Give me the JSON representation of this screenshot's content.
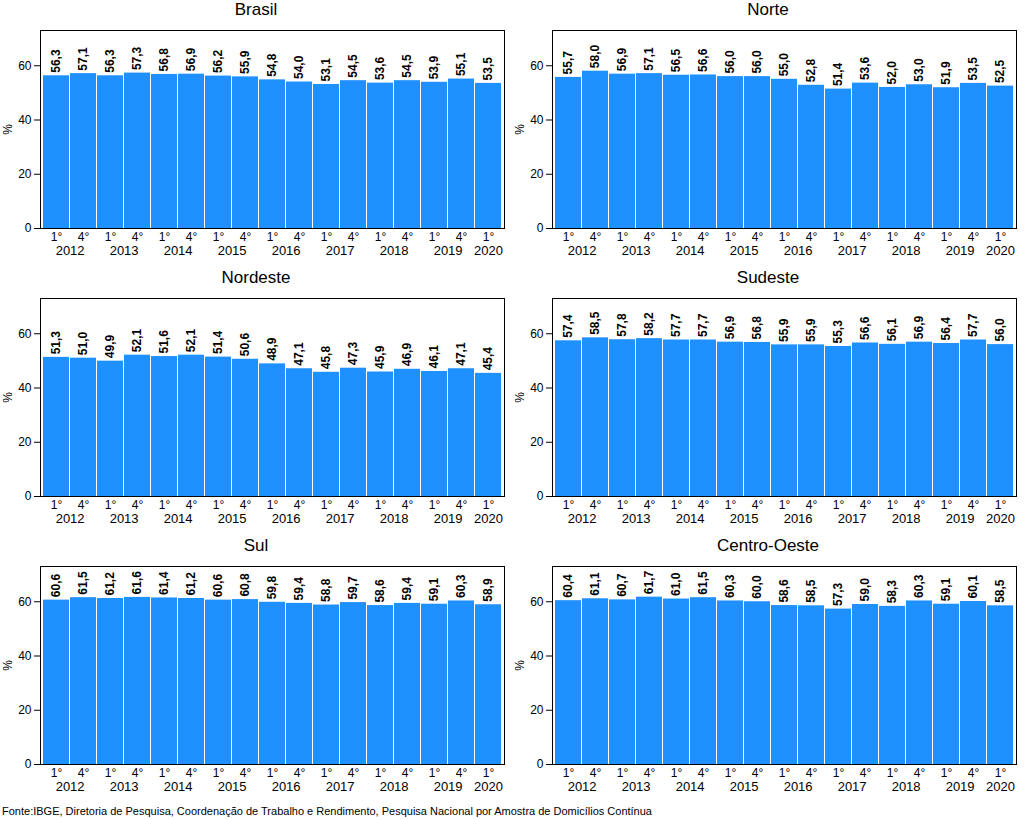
{
  "source": "Fonte:IBGE, Diretoria de Pesquisa, Coordenação de Trabalho e Rendimento, Pesquisa Nacional por Amostra de Domicílios Contínua",
  "chart_data": [
    {
      "type": "bar",
      "title": "Brasil",
      "ylabel": "%",
      "color": "#1e90ff",
      "data_labels": true,
      "categories": [
        "1°",
        "4°",
        "1°",
        "4°",
        "1°",
        "4°",
        "1°",
        "4°",
        "1°",
        "4°",
        "1°",
        "4°",
        "1°",
        "4°",
        "1°",
        "4°",
        "1°"
      ],
      "years": [
        "2012",
        "2012",
        "2013",
        "2013",
        "2014",
        "2014",
        "2015",
        "2015",
        "2016",
        "2016",
        "2017",
        "2017",
        "2018",
        "2018",
        "2019",
        "2019",
        "2020"
      ],
      "values": [
        56.3,
        57.1,
        56.3,
        57.3,
        56.8,
        56.9,
        56.2,
        55.9,
        54.8,
        54.0,
        53.1,
        54.5,
        53.6,
        54.5,
        53.9,
        55.1,
        53.5
      ],
      "value_labels": [
        "56,3",
        "57,1",
        "56,3",
        "57,3",
        "56,8",
        "56,9",
        "56,2",
        "55,9",
        "54,8",
        "54,0",
        "53,1",
        "54,5",
        "53,6",
        "54,5",
        "53,9",
        "55,1",
        "53,5"
      ],
      "ylim": [
        0,
        73
      ],
      "yticks": [
        0,
        20,
        40,
        60
      ]
    },
    {
      "type": "bar",
      "title": "Norte",
      "ylabel": "%",
      "color": "#1e90ff",
      "data_labels": true,
      "categories": [
        "1°",
        "4°",
        "1°",
        "4°",
        "1°",
        "4°",
        "1°",
        "4°",
        "1°",
        "4°",
        "1°",
        "4°",
        "1°",
        "4°",
        "1°",
        "4°",
        "1°"
      ],
      "years": [
        "2012",
        "2012",
        "2013",
        "2013",
        "2014",
        "2014",
        "2015",
        "2015",
        "2016",
        "2016",
        "2017",
        "2017",
        "2018",
        "2018",
        "2019",
        "2019",
        "2020"
      ],
      "values": [
        55.7,
        58.0,
        56.9,
        57.1,
        56.5,
        56.6,
        56.0,
        56.0,
        55.0,
        52.8,
        51.4,
        53.6,
        52.0,
        53.0,
        51.9,
        53.5,
        52.5
      ],
      "value_labels": [
        "55,7",
        "58,0",
        "56,9",
        "57,1",
        "56,5",
        "56,6",
        "56,0",
        "56,0",
        "55,0",
        "52,8",
        "51,4",
        "53,6",
        "52,0",
        "53,0",
        "51,9",
        "53,5",
        "52,5"
      ],
      "ylim": [
        0,
        73
      ],
      "yticks": [
        0,
        20,
        40,
        60
      ]
    },
    {
      "type": "bar",
      "title": "Nordeste",
      "ylabel": "%",
      "color": "#1e90ff",
      "data_labels": true,
      "categories": [
        "1°",
        "4°",
        "1°",
        "4°",
        "1°",
        "4°",
        "1°",
        "4°",
        "1°",
        "4°",
        "1°",
        "4°",
        "1°",
        "4°",
        "1°",
        "4°",
        "1°"
      ],
      "years": [
        "2012",
        "2012",
        "2013",
        "2013",
        "2014",
        "2014",
        "2015",
        "2015",
        "2016",
        "2016",
        "2017",
        "2017",
        "2018",
        "2018",
        "2019",
        "2019",
        "2020"
      ],
      "values": [
        51.3,
        51.0,
        49.9,
        52.1,
        51.6,
        52.1,
        51.4,
        50.6,
        48.9,
        47.1,
        45.8,
        47.3,
        45.9,
        46.9,
        46.1,
        47.1,
        45.4
      ],
      "value_labels": [
        "51,3",
        "51,0",
        "49,9",
        "52,1",
        "51,6",
        "52,1",
        "51,4",
        "50,6",
        "48,9",
        "47,1",
        "45,8",
        "47,3",
        "45,9",
        "46,9",
        "46,1",
        "47,1",
        "45,4"
      ],
      "ylim": [
        0,
        73
      ],
      "yticks": [
        0,
        20,
        40,
        60
      ]
    },
    {
      "type": "bar",
      "title": "Sudeste",
      "ylabel": "%",
      "color": "#1e90ff",
      "data_labels": true,
      "categories": [
        "1°",
        "4°",
        "1°",
        "4°",
        "1°",
        "4°",
        "1°",
        "4°",
        "1°",
        "4°",
        "1°",
        "4°",
        "1°",
        "4°",
        "1°",
        "4°",
        "1°"
      ],
      "years": [
        "2012",
        "2012",
        "2013",
        "2013",
        "2014",
        "2014",
        "2015",
        "2015",
        "2016",
        "2016",
        "2017",
        "2017",
        "2018",
        "2018",
        "2019",
        "2019",
        "2020"
      ],
      "values": [
        57.4,
        58.5,
        57.8,
        58.2,
        57.7,
        57.7,
        56.9,
        56.8,
        55.9,
        55.9,
        55.3,
        56.6,
        56.1,
        56.9,
        56.4,
        57.7,
        56.0
      ],
      "value_labels": [
        "57,4",
        "58,5",
        "57,8",
        "58,2",
        "57,7",
        "57,7",
        "56,9",
        "56,8",
        "55,9",
        "55,9",
        "55,3",
        "56,6",
        "56,1",
        "56,9",
        "56,4",
        "57,7",
        "56,0"
      ],
      "ylim": [
        0,
        73
      ],
      "yticks": [
        0,
        20,
        40,
        60
      ]
    },
    {
      "type": "bar",
      "title": "Sul",
      "ylabel": "%",
      "color": "#1e90ff",
      "data_labels": true,
      "categories": [
        "1°",
        "4°",
        "1°",
        "4°",
        "1°",
        "4°",
        "1°",
        "4°",
        "1°",
        "4°",
        "1°",
        "4°",
        "1°",
        "4°",
        "1°",
        "4°",
        "1°"
      ],
      "years": [
        "2012",
        "2012",
        "2013",
        "2013",
        "2014",
        "2014",
        "2015",
        "2015",
        "2016",
        "2016",
        "2017",
        "2017",
        "2018",
        "2018",
        "2019",
        "2019",
        "2020"
      ],
      "values": [
        60.6,
        61.5,
        61.2,
        61.6,
        61.4,
        61.2,
        60.6,
        60.8,
        59.8,
        59.4,
        58.8,
        59.7,
        58.6,
        59.4,
        59.1,
        60.3,
        58.9
      ],
      "value_labels": [
        "60,6",
        "61,5",
        "61,2",
        "61,6",
        "61,4",
        "61,2",
        "60,6",
        "60,8",
        "59,8",
        "59,4",
        "58,8",
        "59,7",
        "58,6",
        "59,4",
        "59,1",
        "60,3",
        "58,9"
      ],
      "ylim": [
        0,
        73
      ],
      "yticks": [
        0,
        20,
        40,
        60
      ]
    },
    {
      "type": "bar",
      "title": "Centro-Oeste",
      "ylabel": "%",
      "color": "#1e90ff",
      "data_labels": true,
      "categories": [
        "1°",
        "4°",
        "1°",
        "4°",
        "1°",
        "4°",
        "1°",
        "4°",
        "1°",
        "4°",
        "1°",
        "4°",
        "1°",
        "4°",
        "1°",
        "4°",
        "1°"
      ],
      "years": [
        "2012",
        "2012",
        "2013",
        "2013",
        "2014",
        "2014",
        "2015",
        "2015",
        "2016",
        "2016",
        "2017",
        "2017",
        "2018",
        "2018",
        "2019",
        "2019",
        "2020"
      ],
      "values": [
        60.4,
        61.1,
        60.7,
        61.7,
        61.0,
        61.5,
        60.3,
        60.0,
        58.6,
        58.5,
        57.3,
        59.0,
        58.3,
        60.3,
        59.1,
        60.1,
        58.5
      ],
      "value_labels": [
        "60,4",
        "61,1",
        "60,7",
        "61,7",
        "61,0",
        "61,5",
        "60,3",
        "60,0",
        "58,6",
        "58,5",
        "57,3",
        "59,0",
        "58,3",
        "60,3",
        "59,1",
        "60,1",
        "58,5"
      ],
      "ylim": [
        0,
        73
      ],
      "yticks": [
        0,
        20,
        40,
        60
      ]
    }
  ]
}
